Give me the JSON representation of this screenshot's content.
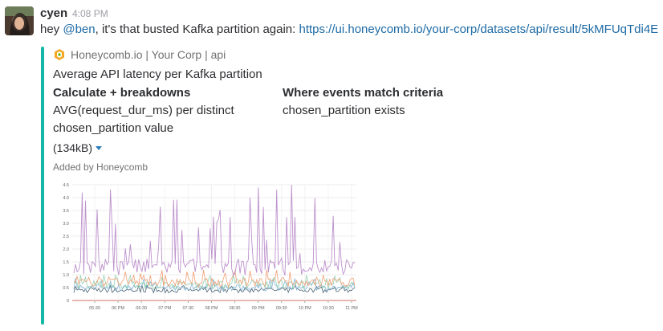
{
  "message": {
    "author": "cyen",
    "time": "4:08 PM",
    "text_before": "hey ",
    "mention": "@ben",
    "text_after": ", it's that busted Kafka partition again: ",
    "link": "https://ui.honeycomb.io/your-corp/datasets/api/result/5kMFUqTdi4E"
  },
  "attachment": {
    "accent_color": "#14b8a6",
    "service": "Honeycomb.io | Your Corp | api",
    "title": "Average API latency per Kafka partition",
    "calc_heading": "Calculate + breakdowns",
    "calc_value": "AVG(request_dur_ms) per distinct chosen_partition value",
    "where_heading": "Where events match criteria",
    "where_value": "chosen_partition exists",
    "size": "(134kB)",
    "footer": "Added by Honeycomb"
  },
  "chart_data": {
    "type": "line",
    "title": "",
    "xlabel": "",
    "ylabel": "",
    "ylim": [
      0,
      4.5
    ],
    "y_ticks": [
      "0",
      "0.5",
      "1.0",
      "1.5",
      "2.0",
      "2.5",
      "3.0",
      "3.5",
      "4.0",
      "4.5"
    ],
    "x_ticks": [
      "05:30",
      "06 PM",
      "06:30",
      "07 PM",
      "07:30",
      "08 PM",
      "08:30",
      "09 PM",
      "09:30",
      "10 PM",
      "10:30",
      "11 PM"
    ],
    "grid": true,
    "series": [
      {
        "color": "#b98bc9",
        "approx_baseline": 1.3,
        "approx_peak": 4.5
      },
      {
        "color": "#ef9a6b",
        "approx_baseline": 0.7,
        "approx_peak": 1.2
      },
      {
        "color": "#8fcfae",
        "approx_baseline": 0.6,
        "approx_peak": 1.0
      },
      {
        "color": "#7fb3d5",
        "approx_baseline": 0.5,
        "approx_peak": 0.9
      },
      {
        "color": "#3d5a6c",
        "approx_baseline": 0.4,
        "approx_peak": 0.6
      }
    ]
  }
}
